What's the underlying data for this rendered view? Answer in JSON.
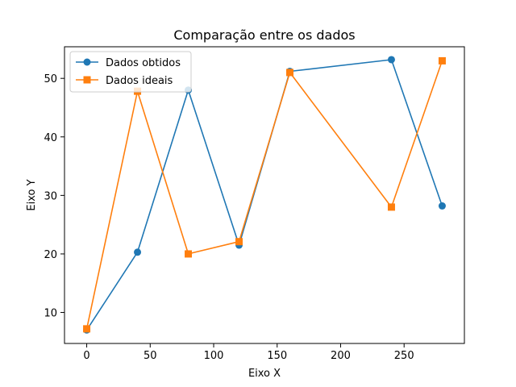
{
  "chart_data": {
    "type": "line",
    "title": "Comparação entre os dados",
    "xlabel": "Eixo X",
    "ylabel": "Eixo Y",
    "xlim": [
      -17.5,
      297.5
    ],
    "ylim": [
      4.7,
      55.4
    ],
    "x_ticks": [
      0,
      50,
      100,
      150,
      200,
      250
    ],
    "y_ticks": [
      10,
      20,
      30,
      40,
      50
    ],
    "grid": false,
    "legend_position": "upper-left",
    "series": [
      {
        "name": "Dados obtidos",
        "color": "#1f77b4",
        "marker": "circle",
        "x": [
          0,
          40,
          80,
          120,
          160,
          240,
          280
        ],
        "y": [
          7.0,
          20.3,
          48.0,
          21.5,
          51.2,
          53.2,
          28.2
        ]
      },
      {
        "name": "Dados ideais",
        "color": "#ff7f0e",
        "marker": "square",
        "x": [
          0,
          40,
          80,
          120,
          160,
          240,
          280
        ],
        "y": [
          7.2,
          47.8,
          20.0,
          22.1,
          51.0,
          28.0,
          53.0
        ]
      }
    ]
  }
}
